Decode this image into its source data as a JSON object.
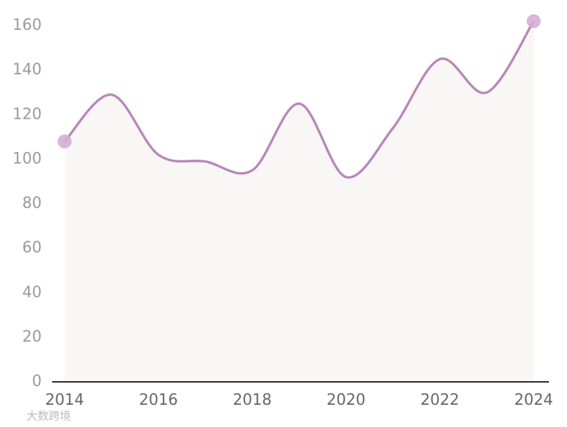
{
  "chart_data": {
    "type": "line",
    "x": [
      2014,
      2015,
      2016,
      2017,
      2018,
      2019,
      2020,
      2021,
      2022,
      2023,
      2024
    ],
    "values": [
      108,
      129,
      102,
      99,
      95,
      125,
      92,
      114,
      145,
      130,
      162
    ],
    "color": "#b788b9",
    "area_color": "#f9f7f6",
    "marker_color": "#d3aed3",
    "xlim": [
      2014,
      2024
    ],
    "xticks": [
      2014,
      2016,
      2018,
      2020,
      2022,
      2024
    ],
    "ylim": [
      0,
      160
    ],
    "yticks": [
      0,
      20,
      40,
      60,
      80,
      100,
      120,
      140,
      160
    ],
    "smooth": true,
    "grid": false,
    "watermark": "大数跨境"
  }
}
